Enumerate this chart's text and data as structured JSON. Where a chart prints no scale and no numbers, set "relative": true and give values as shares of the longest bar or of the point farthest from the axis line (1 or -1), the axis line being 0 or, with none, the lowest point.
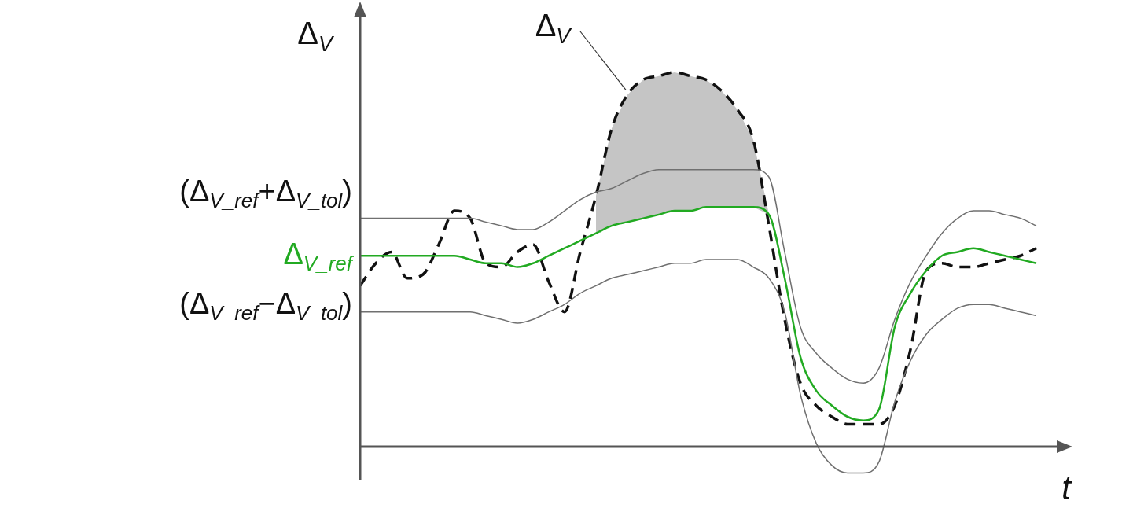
{
  "chart_data": {
    "type": "line",
    "relative": true,
    "xlabel": "t",
    "ylabel": "Δ$_{V}$",
    "legend": false,
    "marker": "none",
    "categories": [
      null,
      null,
      null,
      null,
      null,
      null,
      null,
      null,
      null,
      null,
      null,
      null,
      null,
      null,
      null,
      null,
      null,
      null,
      null,
      null,
      null,
      null,
      null,
      null,
      null,
      null,
      null,
      null,
      null,
      null,
      null,
      null,
      null,
      null,
      null,
      null,
      null,
      null,
      null,
      null,
      null,
      null,
      null,
      null
    ],
    "annotations": [
      "Δ$_{V}$"
    ],
    "series": [
      {
        "name": "(Δ$_{V_ref}$+Δ$_{V_tol}$)",
        "color": "#707070",
        "values": [
          0.61,
          0.61,
          0.61,
          0.61,
          0.61,
          0.61,
          0.61,
          0.61,
          0.6,
          0.59,
          0.58,
          0.58,
          0.6,
          0.63,
          0.66,
          0.68,
          0.69,
          0.71,
          0.73,
          0.74,
          0.74,
          0.74,
          0.74,
          0.74,
          0.74,
          0.74,
          0.72,
          0.52,
          0.32,
          0.25,
          0.21,
          0.18,
          0.17,
          0.21,
          0.34,
          0.44,
          0.51,
          0.57,
          0.61,
          0.63,
          0.63,
          0.62,
          0.61,
          0.59
        ]
      },
      {
        "name": "Δ$_{V_ref}$",
        "color": "#22aa22",
        "values": [
          0.51,
          0.51,
          0.51,
          0.51,
          0.51,
          0.51,
          0.51,
          0.5,
          0.49,
          0.49,
          0.48,
          0.49,
          0.51,
          0.53,
          0.55,
          0.57,
          0.59,
          0.6,
          0.61,
          0.62,
          0.63,
          0.63,
          0.64,
          0.64,
          0.64,
          0.64,
          0.62,
          0.45,
          0.24,
          0.15,
          0.11,
          0.08,
          0.07,
          0.1,
          0.32,
          0.41,
          0.47,
          0.51,
          0.52,
          0.53,
          0.52,
          0.51,
          0.5,
          0.49
        ]
      },
      {
        "name": "(Δ$_{V_ref}$−Δ$_{V_tol}$)",
        "color": "#707070",
        "values": [
          0.36,
          0.36,
          0.36,
          0.36,
          0.36,
          0.36,
          0.36,
          0.36,
          0.35,
          0.34,
          0.33,
          0.34,
          0.36,
          0.38,
          0.41,
          0.43,
          0.45,
          0.46,
          0.47,
          0.48,
          0.49,
          0.49,
          0.5,
          0.5,
          0.5,
          0.48,
          0.45,
          0.36,
          0.14,
          0.01,
          -0.05,
          -0.07,
          -0.07,
          -0.04,
          0.12,
          0.23,
          0.3,
          0.34,
          0.37,
          0.38,
          0.38,
          0.37,
          0.36,
          0.35
        ]
      },
      {
        "color": "#111111",
        "line_style": "dashed",
        "lower": [
          null,
          null,
          null,
          null,
          null,
          null,
          null,
          null,
          null,
          null,
          null,
          null,
          null,
          null,
          null,
          0.57,
          0.59,
          0.6,
          0.61,
          0.62,
          0.63,
          0.63,
          0.64,
          0.64,
          0.64,
          0.64,
          0.62,
          null,
          null,
          null,
          null,
          null,
          null,
          null,
          null,
          null,
          null,
          null,
          null,
          null,
          null,
          null,
          null,
          null
        ],
        "upper": [
          null,
          null,
          null,
          null,
          null,
          null,
          null,
          null,
          null,
          null,
          null,
          null,
          null,
          null,
          null,
          0.67,
          0.85,
          0.94,
          0.98,
          0.99,
          1.0,
          0.99,
          0.98,
          0.95,
          0.9,
          0.82,
          0.62,
          null,
          null,
          null,
          null,
          null,
          null,
          null,
          null,
          null,
          null,
          null,
          null,
          null,
          null,
          null,
          null,
          null
        ],
        "values": [
          0.43,
          0.49,
          0.52,
          0.45,
          0.46,
          0.54,
          0.63,
          0.61,
          0.49,
          0.48,
          0.52,
          0.54,
          0.44,
          0.36,
          0.52,
          0.67,
          0.85,
          0.94,
          0.98,
          0.99,
          1.0,
          0.99,
          0.98,
          0.95,
          0.9,
          0.82,
          0.59,
          0.34,
          0.17,
          0.11,
          0.08,
          0.06,
          0.06,
          0.06,
          0.11,
          0.26,
          0.47,
          0.49,
          0.48,
          0.48,
          0.49,
          0.5,
          0.51,
          0.53
        ]
      }
    ]
  }
}
